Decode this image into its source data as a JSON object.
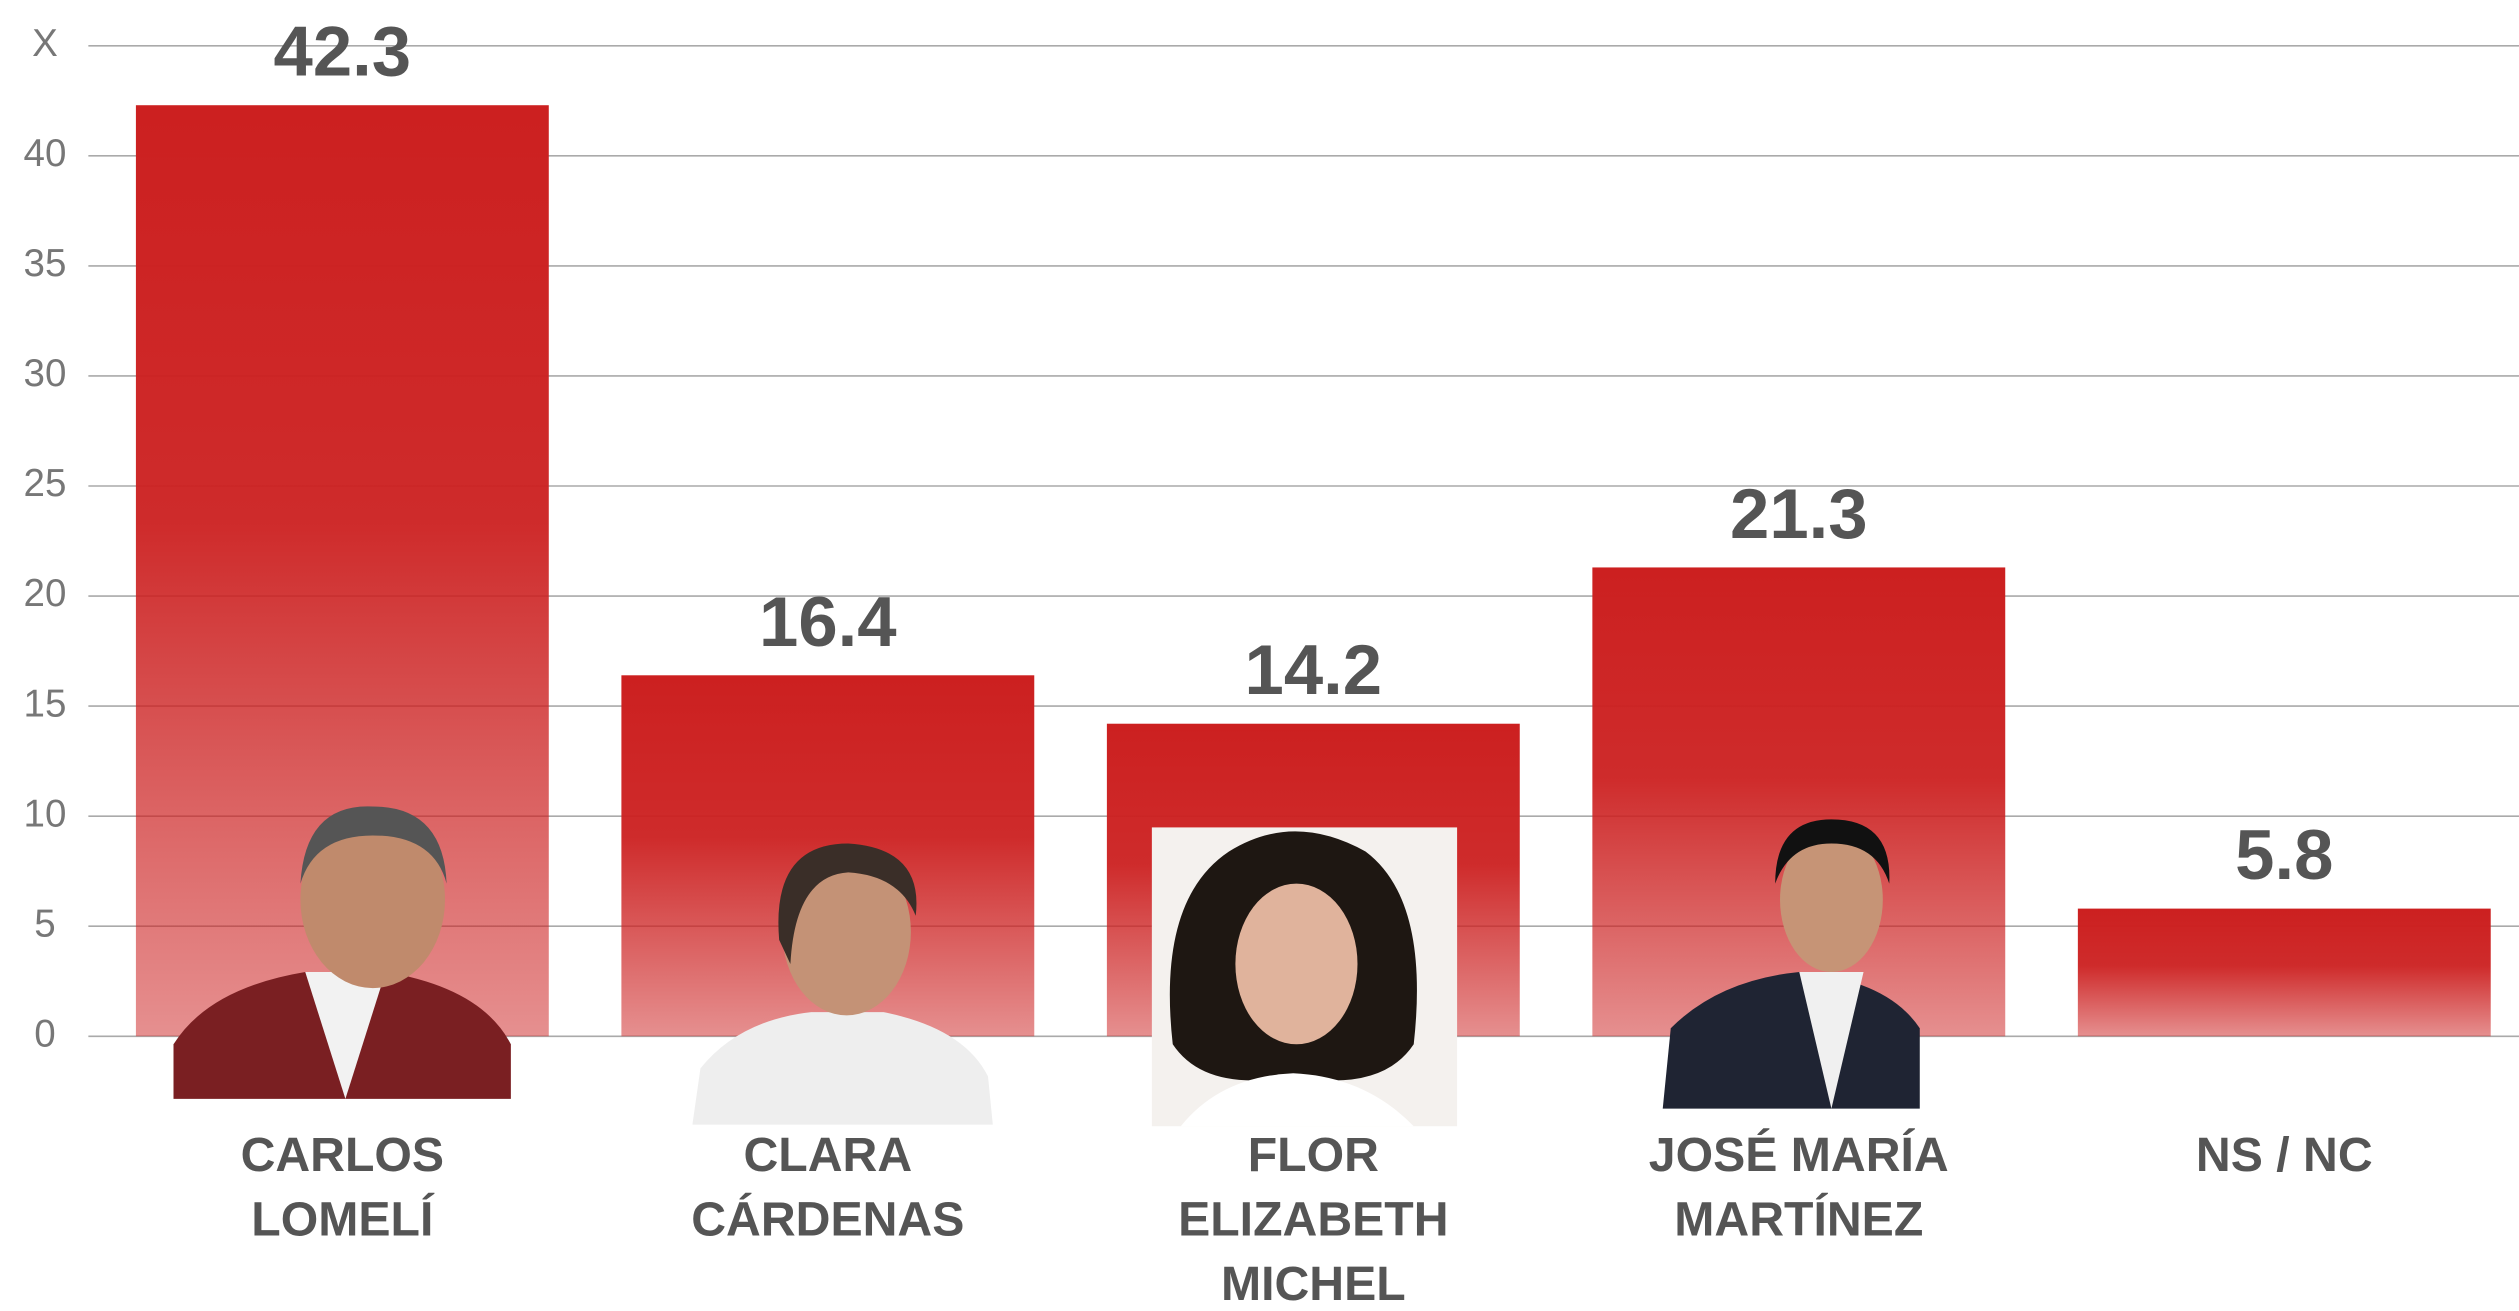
{
  "chart_data": {
    "type": "bar",
    "categories": [
      "CARLOS LOMELÍ",
      "CLARA CÁRDENAS",
      "FLOR ELIZABETH MICHEL",
      "JOSÉ MARÍA MARTÍNEZ",
      "NS / NC"
    ],
    "values": [
      42.3,
      16.4,
      14.2,
      21.3,
      5.8
    ],
    "color": "#cc2020",
    "ylim": [
      0,
      45
    ],
    "yticks": [
      0,
      5,
      10,
      15,
      20,
      25,
      30,
      35,
      40,
      {
        "value": 45,
        "label": "X"
      }
    ],
    "grid": true
  }
}
